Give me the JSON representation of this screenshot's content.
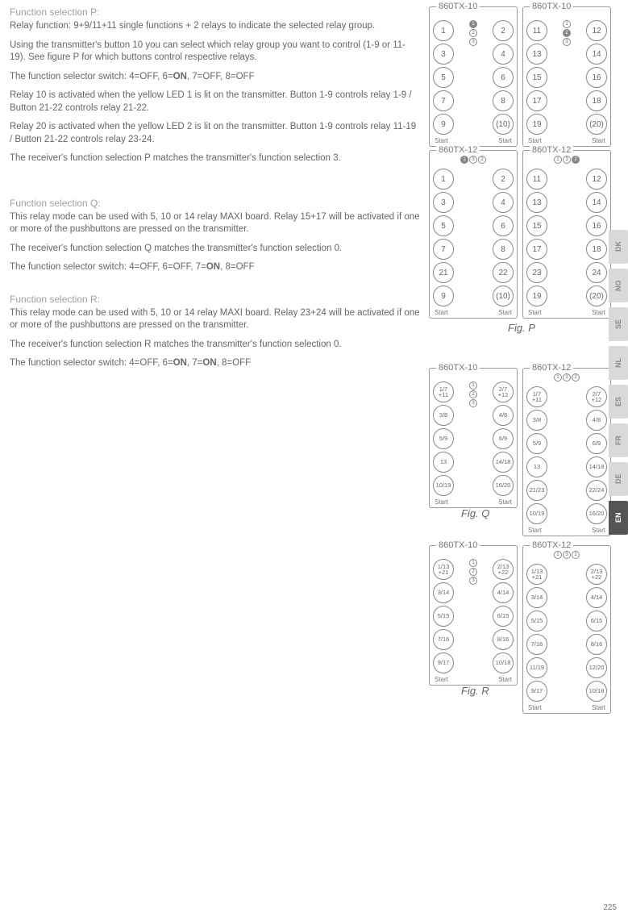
{
  "sections": {
    "p": {
      "title": "Function selection P:",
      "para1": "Relay function: 9+9/11+11 single functions + 2 relays to indicate the selected relay group.",
      "para2": "Using the transmitter's button 10 you can select which relay group you want to control (1-9 or 11-19). See figure P for which buttons control respective relays.",
      "para3_a": "The function selector switch: 4=OFF, 6=",
      "para3_b": "ON",
      "para3_c": ", 7=OFF, 8=OFF",
      "para4": "Relay 10 is activated when the yellow LED 1 is lit on the transmitter. Button 1-9 controls relay 1-9 / Button 21-22 controls relay 21-22.",
      "para5": "Relay 20 is activated when the yellow LED 2 is lit on the transmitter. Button 1-9 controls relay 11-19 / Button 21-22 controls relay 23-24.",
      "para6": "The receiver's function selection P matches the transmitter's function selection 3."
    },
    "q": {
      "title": "Function selection Q:",
      "para1": "This relay mode can be used with 5, 10 or 14 relay MAXI board. Relay 15+17 will be activated if one or more of the pushbuttons are pressed on the transmitter.",
      "para2": "The receiver's function selection Q matches the transmitter's function selection 0.",
      "para3_a": "The function selector switch: 4=OFF, 6=OFF, 7=",
      "para3_b": "ON",
      "para3_c": ", 8=OFF"
    },
    "r": {
      "title": "Function selection R:",
      "para1": "This relay mode can be used with 5, 10 or 14 relay MAXI board. Relay 23+24 will be activated if one or more of the pushbuttons are pressed on the transmitter.",
      "para2": "The receiver's function selection R matches the transmitter's function selection 0.",
      "para3_a": "The function selector switch: 4=OFF, 6=",
      "para3_b": "ON",
      "para3_c": ", 7=",
      "para3_d": "ON",
      "para3_e": ", 8=OFF"
    }
  },
  "langs": [
    "DK",
    "NO",
    "SE",
    "NL",
    "ES",
    "FR",
    "DE",
    "EN"
  ],
  "figP": {
    "label": "Fig. P",
    "devices": [
      {
        "title": "860TX-10",
        "leds": [
          "1",
          "2",
          "3"
        ],
        "ledLayout": "vert",
        "ledFilled": 0,
        "rows": [
          [
            "1",
            "2"
          ],
          [
            "3",
            "4"
          ],
          [
            "5",
            "6"
          ],
          [
            "7",
            "8"
          ],
          [
            "9",
            "(10)"
          ]
        ],
        "start": [
          "Start",
          "Start"
        ]
      },
      {
        "title": "860TX-10",
        "leds": [
          "1",
          "2",
          "3"
        ],
        "ledLayout": "vert",
        "ledFilled": 1,
        "rows": [
          [
            "11",
            "12"
          ],
          [
            "13",
            "14"
          ],
          [
            "15",
            "16"
          ],
          [
            "17",
            "18"
          ],
          [
            "19",
            "(20)"
          ]
        ],
        "start": [
          "Start",
          "Start"
        ]
      },
      {
        "title": "860TX-12",
        "leds": [
          "1",
          "3",
          "2"
        ],
        "ledLayout": "horiz",
        "ledFilled": 0,
        "rows": [
          [
            "1",
            "2"
          ],
          [
            "3",
            "4"
          ],
          [
            "5",
            "6"
          ],
          [
            "7",
            "8"
          ],
          [
            "21",
            "22"
          ],
          [
            "9",
            "(10)"
          ]
        ],
        "start": [
          "Start",
          "Start"
        ]
      },
      {
        "title": "860TX-12",
        "leds": [
          "1",
          "3",
          "2"
        ],
        "ledLayout": "horiz",
        "ledFilled": 2,
        "rows": [
          [
            "11",
            "12"
          ],
          [
            "13",
            "14"
          ],
          [
            "15",
            "16"
          ],
          [
            "17",
            "18"
          ],
          [
            "23",
            "24"
          ],
          [
            "19",
            "(20)"
          ]
        ],
        "start": [
          "Start",
          "Start"
        ]
      }
    ]
  },
  "figQ": {
    "label": "Fig. Q",
    "devices": [
      {
        "title": "860TX-10",
        "leds": [
          "1",
          "2",
          "3"
        ],
        "ledLayout": "vert",
        "ledFilled": -1,
        "rows": [
          [
            "1/7\n+11",
            "2/7\n+12"
          ],
          [
            "3/8",
            "4/8"
          ],
          [
            "5/9",
            "6/9"
          ],
          [
            "13",
            "14/18"
          ],
          [
            "10/19",
            "16/20"
          ]
        ],
        "start": [
          "Start",
          "Start"
        ]
      },
      {
        "title": "860TX-12",
        "leds": [
          "1",
          "3",
          "2"
        ],
        "ledLayout": "horiz",
        "ledFilled": -1,
        "rows": [
          [
            "1/7\n+11",
            "2/7\n+12"
          ],
          [
            "3/8",
            "4/8"
          ],
          [
            "5/9",
            "6/9"
          ],
          [
            "13",
            "14/18"
          ],
          [
            "21/23",
            "22/24"
          ],
          [
            "10/19",
            "16/20"
          ]
        ],
        "start": [
          "Start",
          "Start"
        ]
      }
    ]
  },
  "figR": {
    "label": "Fig. R",
    "devices": [
      {
        "title": "860TX-10",
        "leds": [
          "1",
          "2",
          "3"
        ],
        "ledLayout": "vert",
        "ledFilled": -1,
        "rows": [
          [
            "1/13\n+21",
            "2/13\n+22"
          ],
          [
            "3/14",
            "4/14"
          ],
          [
            "5/15",
            "6/15"
          ],
          [
            "7/16",
            "8/16"
          ],
          [
            "9/17",
            "10/18"
          ]
        ],
        "start": [
          "Start",
          "Start"
        ]
      },
      {
        "title": "860TX-12",
        "leds": [
          "1",
          "3",
          "2"
        ],
        "ledLayout": "horiz",
        "ledFilled": -1,
        "rows": [
          [
            "1/13\n+21",
            "2/13\n+22"
          ],
          [
            "3/14",
            "4/14"
          ],
          [
            "5/15",
            "6/15"
          ],
          [
            "7/16",
            "8/16"
          ],
          [
            "11/19",
            "12/20"
          ],
          [
            "9/17",
            "10/18"
          ]
        ],
        "start": [
          "Start",
          "Start"
        ]
      }
    ]
  },
  "pageNum": "225"
}
